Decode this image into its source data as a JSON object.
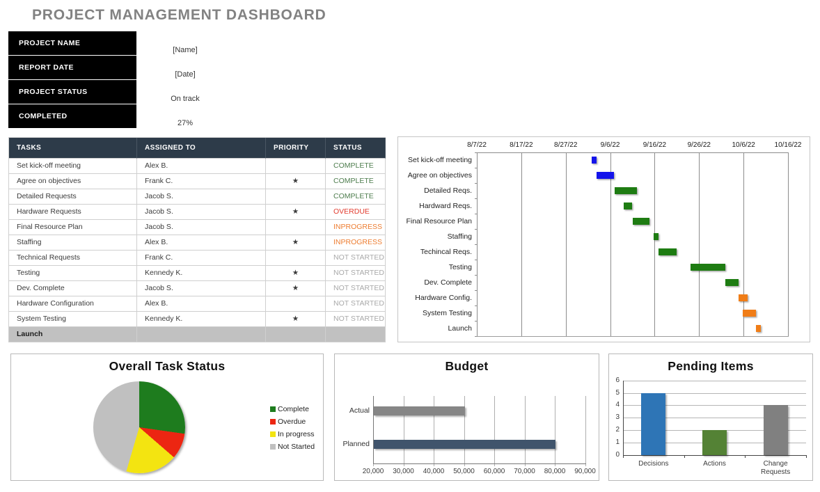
{
  "page": {
    "title": "PROJECT MANAGEMENT DASHBOARD"
  },
  "summary": {
    "fields": [
      {
        "label": "PROJECT NAME",
        "value": "[Name]"
      },
      {
        "label": "REPORT DATE",
        "value": "[Date]"
      },
      {
        "label": "PROJECT STATUS",
        "value": "On track"
      },
      {
        "label": "COMPLETED",
        "value": "27%"
      }
    ]
  },
  "task_table": {
    "columns": [
      "TASKS",
      "ASSIGNED TO",
      "PRIORITY",
      "STATUS"
    ],
    "status_colors": {
      "COMPLETE": "#4E7D4E",
      "OVERDUE": "#E23B2E",
      "INPROGRESS": "#ED7D31",
      "NOT STARTED": "#A9A9A9"
    },
    "rows": [
      {
        "task": "Set kick-off meeting",
        "assigned": "Alex B.",
        "priority": "",
        "status": "COMPLETE",
        "highlight": false
      },
      {
        "task": "Agree on objectives",
        "assigned": "Frank C.",
        "priority": "★",
        "status": "COMPLETE",
        "highlight": false
      },
      {
        "task": "Detailed Requests",
        "assigned": "Jacob S.",
        "priority": "",
        "status": "COMPLETE",
        "highlight": false
      },
      {
        "task": "Hardware Requests",
        "assigned": "Jacob S.",
        "priority": "★",
        "status": "OVERDUE",
        "highlight": false
      },
      {
        "task": "Final Resource Plan",
        "assigned": "Jacob S.",
        "priority": "",
        "status": "INPROGRESS",
        "highlight": false
      },
      {
        "task": "Staffing",
        "assigned": "Alex B.",
        "priority": "★",
        "status": "INPROGRESS",
        "highlight": false
      },
      {
        "task": "Technical Requests",
        "assigned": "Frank C.",
        "priority": "",
        "status": "NOT STARTED",
        "highlight": false
      },
      {
        "task": "Testing",
        "assigned": "Kennedy K.",
        "priority": "★",
        "status": "NOT STARTED",
        "highlight": false
      },
      {
        "task": "Dev. Complete",
        "assigned": "Jacob S.",
        "priority": "★",
        "status": "NOT STARTED",
        "highlight": false
      },
      {
        "task": "Hardware Configuration",
        "assigned": "Alex B.",
        "priority": "",
        "status": "NOT STARTED",
        "highlight": false
      },
      {
        "task": "System Testing",
        "assigned": "Kennedy K.",
        "priority": "★",
        "status": "NOT STARTED",
        "highlight": false
      },
      {
        "task": "Launch",
        "assigned": "",
        "priority": "",
        "status": "",
        "highlight": true
      }
    ]
  },
  "chart_data": [
    {
      "type": "gantt",
      "title": "",
      "axis_start": "8/7/22",
      "total_days": 70,
      "date_ticks": [
        "8/7/22",
        "8/17/22",
        "8/27/22",
        "9/6/22",
        "9/16/22",
        "9/26/22",
        "10/6/22",
        "10/16/22"
      ],
      "colors": {
        "blue": "#1414EB",
        "green": "#1E7C12",
        "orange": "#F07D17"
      },
      "rows": [
        {
          "label": "Set kick-off meeting",
          "color": "blue",
          "start_day": 25.8,
          "duration_days": 1.2
        },
        {
          "label": "Agree on objectives",
          "color": "blue",
          "start_day": 27.0,
          "duration_days": 3.9
        },
        {
          "label": "Detailed Reqs.",
          "color": "green",
          "start_day": 31.0,
          "duration_days": 5.0
        },
        {
          "label": "Hardward Reqs.",
          "color": "green",
          "start_day": 33.0,
          "duration_days": 2.0
        },
        {
          "label": "Final Resource Plan",
          "color": "green",
          "start_day": 35.0,
          "duration_days": 3.9
        },
        {
          "label": "Staffing",
          "color": "green",
          "start_day": 39.8,
          "duration_days": 1.1
        },
        {
          "label": "Techincal Reqs.",
          "color": "green",
          "start_day": 40.9,
          "duration_days": 4.1
        },
        {
          "label": "Testing",
          "color": "green",
          "start_day": 48.0,
          "duration_days": 7.9
        },
        {
          "label": "Dev. Complete",
          "color": "green",
          "start_day": 55.9,
          "duration_days": 3.0
        },
        {
          "label": "Hardware Config.",
          "color": "orange",
          "start_day": 58.9,
          "duration_days": 2.0
        },
        {
          "label": "System Testing",
          "color": "orange",
          "start_day": 59.8,
          "duration_days": 3.0
        },
        {
          "label": "Launch",
          "color": "orange",
          "start_day": 62.8,
          "duration_days": 1.1
        }
      ]
    },
    {
      "type": "pie",
      "title": "Overall Task Status",
      "legend_position": "right",
      "slices": [
        {
          "label": "Complete",
          "value": 3,
          "color": "#1E7C1E"
        },
        {
          "label": "Overdue",
          "value": 1,
          "color": "#EC2612"
        },
        {
          "label": "In progress",
          "value": 2,
          "color": "#F3E411"
        },
        {
          "label": "Not Started",
          "value": 5,
          "color": "#C0C0C0"
        }
      ]
    },
    {
      "type": "bar",
      "orientation": "horizontal",
      "title": "Budget",
      "categories": [
        "Actual",
        "Planned"
      ],
      "values": [
        50000,
        80000
      ],
      "colors": [
        "#868686",
        "#40546C"
      ],
      "xlim": [
        20000,
        90000
      ],
      "xticks": [
        "20,000",
        "30,000",
        "40,000",
        "50,000",
        "60,000",
        "70,000",
        "80,000",
        "90,000"
      ],
      "grid": true
    },
    {
      "type": "bar",
      "orientation": "vertical",
      "title": "Pending Items",
      "categories": [
        "Decisions",
        "Actions",
        "Change Requests"
      ],
      "values": [
        5,
        2,
        4
      ],
      "colors": [
        "#2E75B6",
        "#548235",
        "#808080"
      ],
      "ylim": [
        0,
        6
      ],
      "yticks": [
        0,
        1,
        2,
        3,
        4,
        5,
        6
      ],
      "grid": true
    }
  ]
}
